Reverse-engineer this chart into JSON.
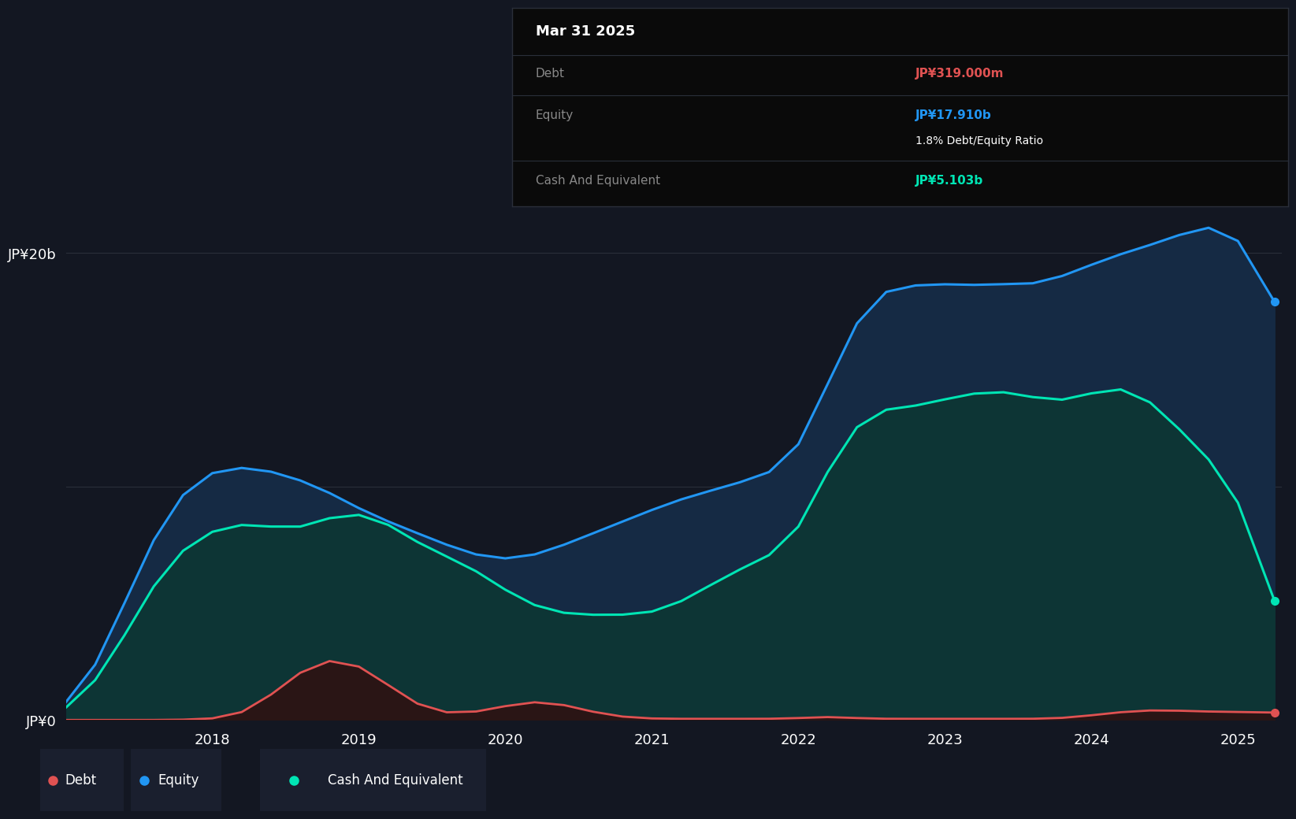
{
  "bg_color": "#131722",
  "chart_bg": "#131722",
  "ylabel_20b": "JP¥20b",
  "ylabel_0": "JP¥0",
  "x_ticks": [
    2018,
    2019,
    2020,
    2021,
    2022,
    2023,
    2024,
    2025
  ],
  "equity_color": "#2196f3",
  "cash_color": "#00e5b4",
  "debt_color": "#e05252",
  "equity_fill": "#1a3a5c",
  "cash_fill": "#0d3d3a",
  "debt_fill": "#3d1a1a",
  "grid_color": "#2a2f3a",
  "time_points": [
    2017.0,
    2017.2,
    2017.4,
    2017.6,
    2017.8,
    2018.0,
    2018.2,
    2018.4,
    2018.6,
    2018.8,
    2019.0,
    2019.2,
    2019.4,
    2019.6,
    2019.8,
    2020.0,
    2020.2,
    2020.4,
    2020.6,
    2020.8,
    2021.0,
    2021.2,
    2021.4,
    2021.6,
    2021.8,
    2022.0,
    2022.2,
    2022.4,
    2022.6,
    2022.8,
    2023.0,
    2023.2,
    2023.4,
    2023.6,
    2023.8,
    2024.0,
    2024.2,
    2024.4,
    2024.6,
    2024.8,
    2025.0,
    2025.25
  ],
  "equity": [
    0.2,
    2.0,
    5.0,
    8.0,
    10.0,
    10.8,
    10.9,
    10.7,
    10.3,
    9.8,
    9.0,
    8.5,
    8.0,
    7.5,
    7.0,
    6.8,
    7.0,
    7.5,
    8.0,
    8.5,
    9.0,
    9.5,
    9.8,
    10.2,
    10.5,
    11.0,
    14.5,
    17.5,
    18.8,
    18.5,
    18.8,
    18.5,
    18.8,
    18.5,
    19.0,
    19.5,
    20.0,
    20.3,
    20.8,
    21.2,
    21.5,
    17.91
  ],
  "cash": [
    0.1,
    1.5,
    3.5,
    6.0,
    7.5,
    8.2,
    8.5,
    8.3,
    8.0,
    8.8,
    9.0,
    8.5,
    7.5,
    7.0,
    6.5,
    5.5,
    4.8,
    4.5,
    4.5,
    4.5,
    4.5,
    5.0,
    5.8,
    6.5,
    7.0,
    7.5,
    11.0,
    13.0,
    13.5,
    13.3,
    13.8,
    14.0,
    14.2,
    13.8,
    13.5,
    14.0,
    14.5,
    13.8,
    12.5,
    11.0,
    10.5,
    5.103
  ],
  "debt": [
    0.0,
    0.0,
    0.0,
    0.0,
    0.0,
    0.05,
    0.1,
    1.0,
    2.2,
    2.8,
    2.5,
    1.5,
    0.5,
    0.2,
    0.3,
    0.6,
    0.9,
    0.7,
    0.3,
    0.1,
    0.05,
    0.05,
    0.05,
    0.05,
    0.05,
    0.05,
    0.2,
    0.05,
    0.05,
    0.05,
    0.05,
    0.05,
    0.05,
    0.05,
    0.05,
    0.2,
    0.35,
    0.45,
    0.4,
    0.35,
    0.35,
    0.319
  ],
  "ylim": [
    0,
    22
  ],
  "tooltip": {
    "date": "Mar 31 2025",
    "debt_label": "Debt",
    "debt_value": "JP¥319.000m",
    "equity_label": "Equity",
    "equity_value": "JP¥17.910b",
    "ratio_text": "1.8% Debt/Equity Ratio",
    "cash_label": "Cash And Equivalent",
    "cash_value": "JP¥5.103b"
  },
  "legend_items": [
    {
      "label": "Debt",
      "color": "#e05252"
    },
    {
      "label": "Equity",
      "color": "#2196f3"
    },
    {
      "label": "Cash And Equivalent",
      "color": "#00e5b4"
    }
  ]
}
